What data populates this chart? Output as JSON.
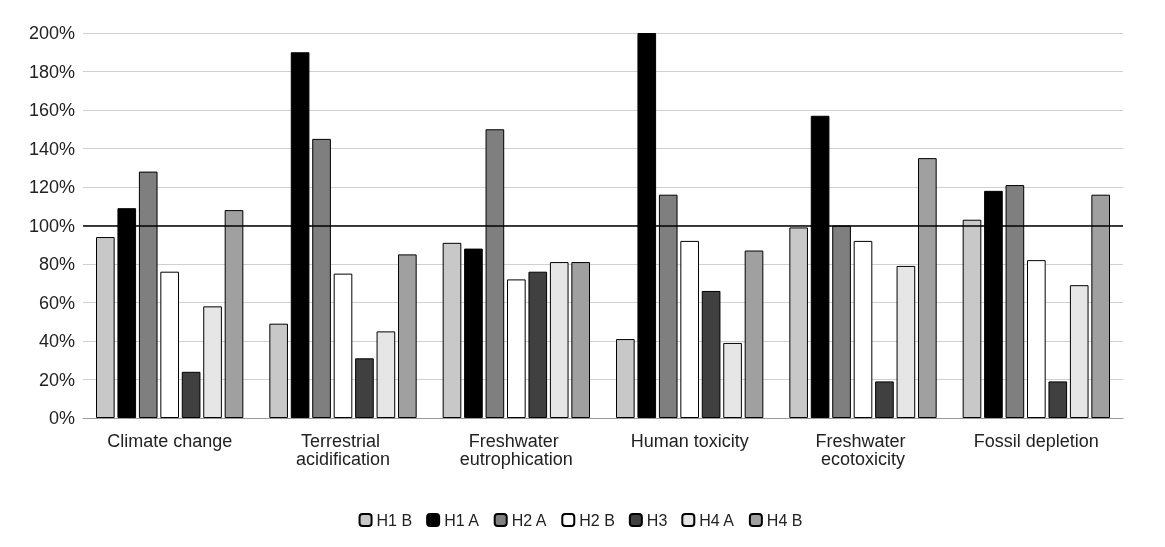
{
  "chart_data": {
    "type": "bar",
    "categories": [
      "Climate change",
      "Terrestrial acidification",
      "Freshwater eutrophication",
      "Human toxicity",
      "Freshwater ecotoxicity",
      "Fossil depletion"
    ],
    "series": [
      {
        "name": "H1 B",
        "color": "#c8c8c8",
        "values": [
          94,
          49,
          91,
          41,
          99,
          103
        ]
      },
      {
        "name": "H1 A",
        "color": "#000000",
        "values": [
          109,
          190,
          88,
          200,
          157,
          118
        ]
      },
      {
        "name": "H2 A",
        "color": "#7f7f7f",
        "values": [
          128,
          145,
          150,
          116,
          100,
          121
        ]
      },
      {
        "name": "H2 B",
        "color": "#ffffff",
        "values": [
          76,
          75,
          72,
          92,
          92,
          82
        ]
      },
      {
        "name": "H3",
        "color": "#404040",
        "values": [
          24,
          31,
          76,
          66,
          19,
          19
        ]
      },
      {
        "name": "H4 A",
        "color": "#e6e6e6",
        "values": [
          58,
          45,
          81,
          39,
          79,
          69
        ]
      },
      {
        "name": "H4 B",
        "color": "#a0a0a0",
        "values": [
          108,
          85,
          81,
          87,
          135,
          116
        ]
      }
    ],
    "ylim": [
      0,
      200
    ],
    "yticks": [
      {
        "value": 0,
        "label": "0%"
      },
      {
        "value": 20,
        "label": "20%"
      },
      {
        "value": 40,
        "label": "40%"
      },
      {
        "value": 60,
        "label": "60%"
      },
      {
        "value": 80,
        "label": "80%"
      },
      {
        "value": 100,
        "label": "100%"
      },
      {
        "value": 120,
        "label": "120%"
      },
      {
        "value": 140,
        "label": "140%"
      },
      {
        "value": 160,
        "label": "160%"
      },
      {
        "value": 180,
        "label": "180%"
      },
      {
        "value": 200,
        "label": "200%"
      }
    ],
    "ref_lines": [
      {
        "axis": "y",
        "value": 100,
        "color": "#000000"
      }
    ],
    "grid": "y",
    "legend": "bottom"
  }
}
